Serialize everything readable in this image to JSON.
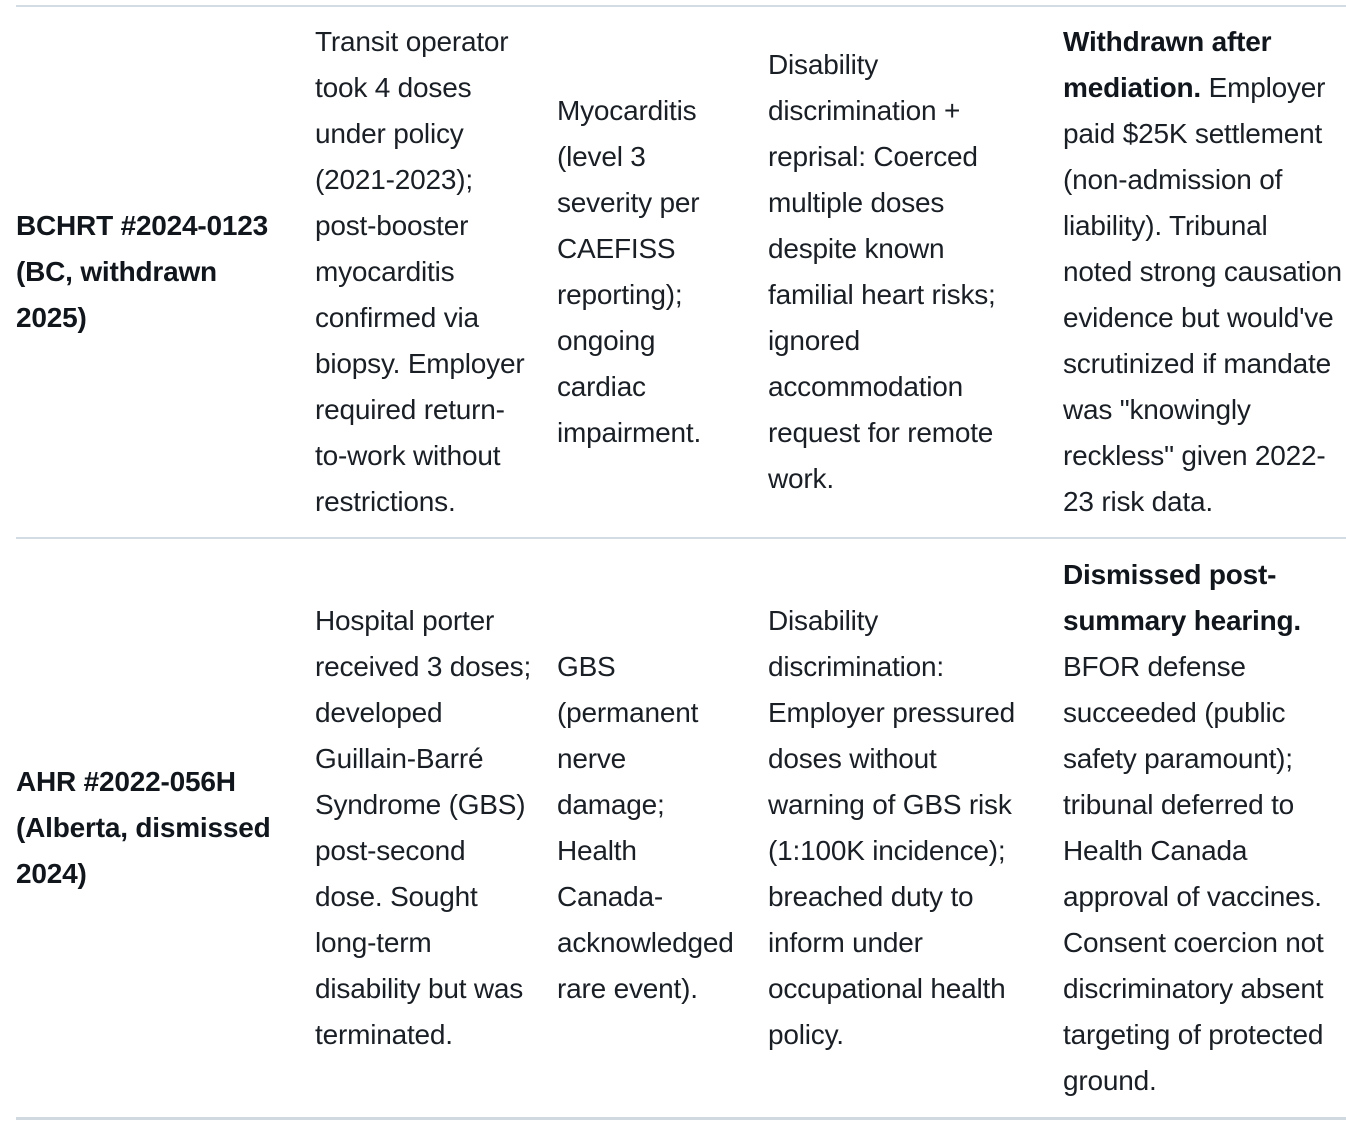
{
  "page": {
    "background": "#ffffff",
    "border_color": "#d3dce2",
    "text_color": "#1a1f26",
    "bold_text_color": "#11161d"
  },
  "table": {
    "rows": [
      {
        "case_id": [
          "BCHRT #2024-0123",
          "(BC, withdrawn",
          "2025)"
        ],
        "facts": [
          "Transit operator",
          "took 4 doses",
          "under policy",
          "(2021-2023);",
          "post-booster",
          "myocarditis",
          "confirmed via",
          "biopsy. Employer",
          "required return-",
          "to-work without",
          "restrictions."
        ],
        "condition": [
          "Myocarditis",
          "(level 3",
          "severity per",
          "CAEFISS",
          "reporting);",
          "ongoing",
          "cardiac",
          "impairment."
        ],
        "claim": [
          "Disability",
          "discrimination +",
          "reprisal: Coerced",
          "multiple doses",
          "despite known",
          "familial heart risks;",
          "ignored",
          "accommodation",
          "request for remote",
          "work."
        ],
        "outcome": [
          [
            {
              "t": "Withdrawn after",
              "b": true
            }
          ],
          [
            {
              "t": "mediation.",
              "b": true
            },
            {
              "t": " Employer",
              "b": false
            }
          ],
          [
            {
              "t": "paid $25K settlement",
              "b": false
            }
          ],
          [
            {
              "t": "(non-admission of",
              "b": false
            }
          ],
          [
            {
              "t": "liability). Tribunal",
              "b": false
            }
          ],
          [
            {
              "t": "noted strong causation",
              "b": false
            }
          ],
          [
            {
              "t": "evidence but would've",
              "b": false
            }
          ],
          [
            {
              "t": "scrutinized if mandate",
              "b": false
            }
          ],
          [
            {
              "t": "was \"knowingly",
              "b": false
            }
          ],
          [
            {
              "t": "reckless\" given 2022-",
              "b": false
            }
          ],
          [
            {
              "t": "23 risk data.",
              "b": false
            }
          ]
        ]
      },
      {
        "case_id": [
          "AHR #2022-056H",
          "(Alberta, dismissed",
          "2024)"
        ],
        "facts": [
          "Hospital porter",
          "received 3 doses;",
          "developed",
          "Guillain-Barré",
          "Syndrome (GBS)",
          "post-second",
          "dose. Sought",
          "long-term",
          "disability but was",
          "terminated."
        ],
        "condition": [
          "GBS",
          "(permanent",
          "nerve",
          "damage;",
          "Health",
          "Canada-",
          "acknowledged",
          "rare event)."
        ],
        "claim": [
          "Disability",
          "discrimination:",
          "Employer pressured",
          "doses without",
          "warning of GBS risk",
          "(1:100K incidence);",
          "breached duty to",
          "inform under",
          "occupational health",
          "policy."
        ],
        "outcome": [
          [
            {
              "t": "Dismissed post-",
              "b": true
            }
          ],
          [
            {
              "t": "summary hearing.",
              "b": true
            }
          ],
          [
            {
              "t": "BFOR defense",
              "b": false
            }
          ],
          [
            {
              "t": "succeeded (public",
              "b": false
            }
          ],
          [
            {
              "t": "safety paramount);",
              "b": false
            }
          ],
          [
            {
              "t": "tribunal deferred to",
              "b": false
            }
          ],
          [
            {
              "t": "Health Canada",
              "b": false
            }
          ],
          [
            {
              "t": "approval of vaccines.",
              "b": false
            }
          ],
          [
            {
              "t": "Consent coercion not",
              "b": false
            }
          ],
          [
            {
              "t": "discriminatory absent",
              "b": false
            }
          ],
          [
            {
              "t": "targeting of protected",
              "b": false
            }
          ],
          [
            {
              "t": "ground.",
              "b": false
            }
          ]
        ]
      }
    ]
  }
}
